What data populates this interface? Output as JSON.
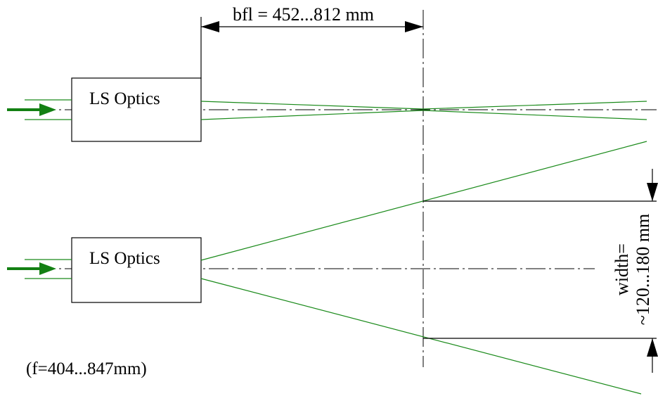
{
  "labels": {
    "bfl": "bfl = 452...812 mm",
    "optics_top": "LS Optics",
    "optics_bottom": "LS Optics",
    "width_line1": "width=",
    "width_line2": "~120...180 mm",
    "focal_length": "(f=404...847mm)"
  },
  "colors": {
    "beam": "#1a8a1a",
    "arrow": "#138013",
    "line": "#000000",
    "background": "#ffffff"
  },
  "icons": {
    "input_arrow_top": "arrow-right-icon",
    "input_arrow_bottom": "arrow-right-icon"
  }
}
